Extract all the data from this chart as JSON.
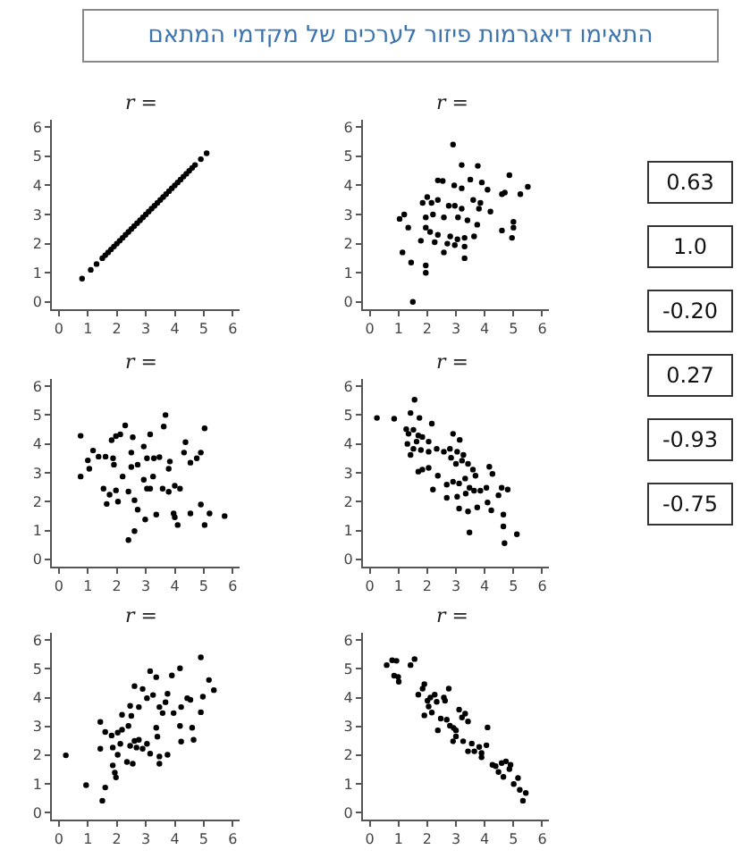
{
  "chart_data": [
    {
      "type": "other",
      "title": "התאימו דיאגרמות פיזור לערכים של מקדמי המתאם",
      "annotations": [
        "0.63",
        "1.0",
        "-0.20",
        "0.27",
        "-0.93",
        "-0.75"
      ]
    },
    {
      "type": "scatter",
      "title": "r =",
      "marker": "circle",
      "color": "#000000",
      "xlim": [
        -0.24,
        6.24
      ],
      "ylim": [
        -0.24,
        6.24
      ],
      "xticks": [
        0,
        1,
        2,
        3,
        4,
        5,
        6
      ],
      "yticks": [
        0,
        1,
        2,
        3,
        4,
        5,
        6
      ],
      "x": [
        0.8,
        1.1,
        1.3,
        1.5,
        1.6,
        1.7,
        1.8,
        1.9,
        2.0,
        2.1,
        2.2,
        2.3,
        2.4,
        2.5,
        2.6,
        2.7,
        2.8,
        2.9,
        3.0,
        3.1,
        3.2,
        3.3,
        3.4,
        3.5,
        3.6,
        3.7,
        3.8,
        3.9,
        4.0,
        4.1,
        4.2,
        4.3,
        4.4,
        4.5,
        4.6,
        4.7,
        4.9,
        5.1
      ],
      "values": [
        0.8,
        1.1,
        1.3,
        1.5,
        1.6,
        1.7,
        1.8,
        1.9,
        2.0,
        2.1,
        2.2,
        2.3,
        2.4,
        2.5,
        2.6,
        2.7,
        2.8,
        2.9,
        3.0,
        3.1,
        3.2,
        3.3,
        3.4,
        3.5,
        3.6,
        3.7,
        3.8,
        3.9,
        4.0,
        4.1,
        4.2,
        4.3,
        4.4,
        4.5,
        4.6,
        4.7,
        4.9,
        5.1
      ]
    },
    {
      "type": "scatter",
      "title": "r =",
      "marker": "circle",
      "color": "#000000",
      "xlim": [
        -0.24,
        6.24
      ],
      "ylim": [
        -0.24,
        6.24
      ],
      "xticks": [
        0,
        1,
        2,
        3,
        4,
        5,
        6
      ],
      "yticks": [
        0,
        1,
        2,
        3,
        4,
        5,
        6
      ],
      "x": [
        2.9,
        3.2,
        3.76,
        4.86,
        2.37,
        2.54,
        2.94,
        3.2,
        3.5,
        3.9,
        4.1,
        4.6,
        4.7,
        5.5,
        5.24,
        1.84,
        2.0,
        2.15,
        2.37,
        2.75,
        2.96,
        3.2,
        3.6,
        3.85,
        3.8,
        4.2,
        1.2,
        1.04,
        1.34,
        1.95,
        2.2,
        2.58,
        3.07,
        3.4,
        3.74,
        5.0,
        5.0,
        4.6,
        1.95,
        2.1,
        2.37,
        2.8,
        3.05,
        3.3,
        3.63,
        4.95,
        1.78,
        2.26,
        2.7,
        2.96,
        3.3,
        1.14,
        2.58,
        3.3,
        1.44,
        1.95,
        1.95,
        1.5
      ],
      "values": [
        5.4,
        4.7,
        4.67,
        4.35,
        4.17,
        4.15,
        4.0,
        3.9,
        4.2,
        4.1,
        3.85,
        3.7,
        3.75,
        3.95,
        3.7,
        3.4,
        3.6,
        3.4,
        3.5,
        3.3,
        3.3,
        3.2,
        3.5,
        3.4,
        3.2,
        3.1,
        3.0,
        2.85,
        2.55,
        2.9,
        3.0,
        2.9,
        2.9,
        2.8,
        2.65,
        2.75,
        2.55,
        2.45,
        2.55,
        2.4,
        2.3,
        2.25,
        2.15,
        2.2,
        2.25,
        2.2,
        2.1,
        2.05,
        2.0,
        1.95,
        1.9,
        1.7,
        1.7,
        1.5,
        1.35,
        1.25,
        1.0,
        0.0
      ]
    },
    {
      "type": "scatter",
      "title": "r =",
      "marker": "circle",
      "color": "#000000",
      "xlim": [
        -0.24,
        6.24
      ],
      "ylim": [
        -0.24,
        6.24
      ],
      "xticks": [
        0,
        1,
        2,
        3,
        4,
        5,
        6
      ],
      "yticks": [
        0,
        1,
        2,
        3,
        4,
        5,
        6
      ],
      "x": [
        0.75,
        0.75,
        1.0,
        1.05,
        1.18,
        1.37,
        1.61,
        1.82,
        1.97,
        2.12,
        2.29,
        2.55,
        2.5,
        1.87,
        1.9,
        2.2,
        2.5,
        2.72,
        2.93,
        3.15,
        3.04,
        3.28,
        3.47,
        3.68,
        3.62,
        3.83,
        3.79,
        4.32,
        4.37,
        4.54,
        4.76,
        4.9,
        5.03,
        1.54,
        1.75,
        1.97,
        2.04,
        1.65,
        2.4,
        2.61,
        2.72,
        2.93,
        3.04,
        3.15,
        3.25,
        3.58,
        3.79,
        4.0,
        4.18,
        2.98,
        3.36,
        3.96,
        4.0,
        4.1,
        4.54,
        4.9,
        5.2,
        5.03,
        5.72,
        2.61,
        2.4
      ],
      "values": [
        4.28,
        2.87,
        3.43,
        3.14,
        3.77,
        3.56,
        3.56,
        4.13,
        4.27,
        4.33,
        4.64,
        4.23,
        3.7,
        3.5,
        3.28,
        2.87,
        3.2,
        3.28,
        3.91,
        4.33,
        3.5,
        3.5,
        3.54,
        5.0,
        4.6,
        3.39,
        3.14,
        3.7,
        4.06,
        3.35,
        3.5,
        3.7,
        4.54,
        2.45,
        2.24,
        2.39,
        2.0,
        1.92,
        2.35,
        2.05,
        1.72,
        2.76,
        2.45,
        2.45,
        2.87,
        2.45,
        2.34,
        2.55,
        2.45,
        1.38,
        1.55,
        1.59,
        1.46,
        1.19,
        1.59,
        1.9,
        1.59,
        1.19,
        1.5,
        0.98,
        0.67
      ]
    },
    {
      "type": "scatter",
      "title": "r =",
      "marker": "circle",
      "color": "#000000",
      "xlim": [
        -0.24,
        6.24
      ],
      "ylim": [
        -0.24,
        6.24
      ],
      "xticks": [
        0,
        1,
        2,
        3,
        4,
        5,
        6
      ],
      "yticks": [
        0,
        1,
        2,
        3,
        4,
        5,
        6
      ],
      "x": [
        0.25,
        0.85,
        1.56,
        1.42,
        1.73,
        1.27,
        1.35,
        1.52,
        1.69,
        1.83,
        1.63,
        1.31,
        1.52,
        1.42,
        1.78,
        2.16,
        2.05,
        2.05,
        2.33,
        2.58,
        2.9,
        3.13,
        2.79,
        3.04,
        3.26,
        2.83,
        3.0,
        3.21,
        3.42,
        3.59,
        3.68,
        1.69,
        1.83,
        2.05,
        2.37,
        2.68,
        2.2,
        2.9,
        3.11,
        3.32,
        3.47,
        3.63,
        3.34,
        2.68,
        3.04,
        4.16,
        4.27,
        4.06,
        3.85,
        4.59,
        4.8,
        4.48,
        4.1,
        4.23,
        3.11,
        3.42,
        3.74,
        4.65,
        4.65,
        4.69,
        5.12,
        3.47
      ],
      "values": [
        4.9,
        4.87,
        5.53,
        5.07,
        4.9,
        4.51,
        4.35,
        4.49,
        4.29,
        4.24,
        4.08,
        4.0,
        3.83,
        3.62,
        3.79,
        4.7,
        4.08,
        3.73,
        3.83,
        3.73,
        4.35,
        4.14,
        3.83,
        3.73,
        3.62,
        3.52,
        3.31,
        3.42,
        3.31,
        3.11,
        2.9,
        3.04,
        3.11,
        3.17,
        2.9,
        2.59,
        2.42,
        2.69,
        2.63,
        2.8,
        2.48,
        2.38,
        2.28,
        2.13,
        2.17,
        3.21,
        2.96,
        2.48,
        2.38,
        2.48,
        2.42,
        2.22,
        1.97,
        1.7,
        1.76,
        1.66,
        1.8,
        1.55,
        1.14,
        0.56,
        0.87,
        0.93
      ]
    },
    {
      "type": "scatter",
      "title": "r =",
      "marker": "circle",
      "color": "#000000",
      "xlim": [
        -0.24,
        6.24
      ],
      "ylim": [
        -0.24,
        6.24
      ],
      "xticks": [
        0,
        1,
        2,
        3,
        4,
        5,
        6
      ],
      "yticks": [
        0,
        1,
        2,
        3,
        4,
        5,
        6
      ],
      "x": [
        0.24,
        0.94,
        1.5,
        1.6,
        1.86,
        1.93,
        1.97,
        1.43,
        1.43,
        1.6,
        1.82,
        2.03,
        2.18,
        2.12,
        1.86,
        2.03,
        2.18,
        2.4,
        2.46,
        2.35,
        2.55,
        2.68,
        2.61,
        2.76,
        2.89,
        3.04,
        3.36,
        3.4,
        3.15,
        3.47,
        3.47,
        3.75,
        2.46,
        2.61,
        2.5,
        2.76,
        2.89,
        3.04,
        3.15,
        3.25,
        3.36,
        3.47,
        3.58,
        3.68,
        3.75,
        3.9,
        3.96,
        4.18,
        4.22,
        4.43,
        4.54,
        4.18,
        4.6,
        4.65,
        4.22,
        4.9,
        4.97,
        4.9,
        5.18,
        5.35
      ],
      "values": [
        1.99,
        0.95,
        0.41,
        0.87,
        1.64,
        1.39,
        1.22,
        2.22,
        3.15,
        2.8,
        2.68,
        2.78,
        2.88,
        2.39,
        2.26,
        2.01,
        3.4,
        3.01,
        2.32,
        1.76,
        1.7,
        2.26,
        2.49,
        2.53,
        2.22,
        2.39,
        2.95,
        2.64,
        2.05,
        1.95,
        1.7,
        2.01,
        3.71,
        4.4,
        3.36,
        3.67,
        4.3,
        3.98,
        4.92,
        4.09,
        4.71,
        3.67,
        3.46,
        3.84,
        4.13,
        4.77,
        3.46,
        5.02,
        3.67,
        3.98,
        3.92,
        3.01,
        2.95,
        2.53,
        2.47,
        5.4,
        4.03,
        3.49,
        4.61,
        4.26
      ]
    },
    {
      "type": "scatter",
      "title": "r =",
      "marker": "circle",
      "color": "#000000",
      "xlim": [
        -0.24,
        6.24
      ],
      "ylim": [
        -0.24,
        6.24
      ],
      "xticks": [
        0,
        1,
        2,
        3,
        4,
        5,
        6
      ],
      "yticks": [
        0,
        1,
        2,
        3,
        4,
        5,
        6
      ],
      "x": [
        0.59,
        0.78,
        0.93,
        0.85,
        0.99,
        1.01,
        1.42,
        1.56,
        1.84,
        1.9,
        1.69,
        2.01,
        2.11,
        2.26,
        2.33,
        2.58,
        2.75,
        2.62,
        1.9,
        2.16,
        2.05,
        2.37,
        2.47,
        2.68,
        2.79,
        2.92,
        3.0,
        3.11,
        3.21,
        3.32,
        3.42,
        3.0,
        2.9,
        3.25,
        3.55,
        3.42,
        3.64,
        3.81,
        3.89,
        4.06,
        4.1,
        3.89,
        4.27,
        4.38,
        4.48,
        4.59,
        4.74,
        4.65,
        4.86,
        4.9,
        5.01,
        5.16,
        5.22,
        5.33,
        5.43
      ],
      "values": [
        5.13,
        5.3,
        5.28,
        4.76,
        4.72,
        4.55,
        5.13,
        5.34,
        4.31,
        4.47,
        4.1,
        3.89,
        4.0,
        4.1,
        3.85,
        4.0,
        4.31,
        3.89,
        3.38,
        3.48,
        3.69,
        2.86,
        3.27,
        3.23,
        3.02,
        2.94,
        2.86,
        3.58,
        3.31,
        3.44,
        3.17,
        2.65,
        2.48,
        2.48,
        2.4,
        2.13,
        2.13,
        2.28,
        2.07,
        2.34,
        2.96,
        1.92,
        1.66,
        1.61,
        1.41,
        1.72,
        1.78,
        1.24,
        1.51,
        1.66,
        0.99,
        1.2,
        0.79,
        0.41,
        0.68
      ]
    }
  ]
}
